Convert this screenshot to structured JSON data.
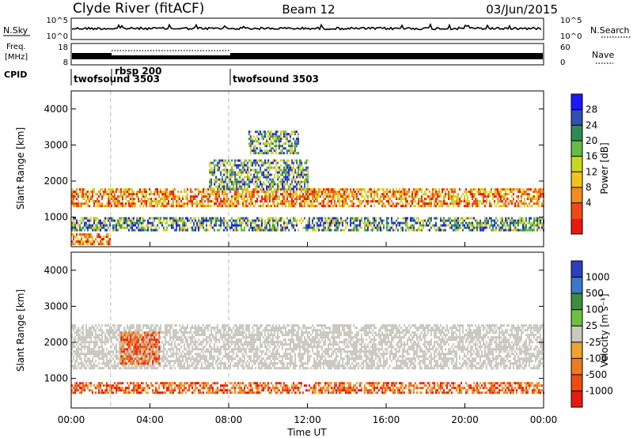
{
  "header": {
    "station": "Clyde River (fitACF)",
    "beam": "Beam 12",
    "date": "03/Jun/2015"
  },
  "noise_panel": {
    "left_label": "N.Sky",
    "right_label": "N.Search",
    "tick_top": "10^5",
    "tick_bottom": "10^0"
  },
  "freq_panel": {
    "left_label_line1": "Freq.",
    "left_label_line2": "[MHz]",
    "left_tick_top": "18",
    "left_tick_bottom": "8",
    "right_label": "Nave",
    "right_tick_top": "60",
    "right_tick_bottom": "0"
  },
  "cpid_panel": {
    "label": "CPID",
    "segments": [
      {
        "name": "twofsound 3503",
        "start_hour": 0,
        "end_hour": 2
      },
      {
        "name": "rbsp 200",
        "start_hour": 2,
        "end_hour": 8
      },
      {
        "name": "twofsound 3503",
        "start_hour": 8,
        "end_hour": 24
      }
    ]
  },
  "chart_data": [
    {
      "type": "heatmap",
      "panel": "power",
      "ylabel": "Slant Range [km]",
      "ylim": [
        180,
        4500
      ],
      "xlim": [
        0,
        24
      ],
      "yticks": [
        "1000",
        "2000",
        "3000",
        "4000"
      ],
      "colorbar": {
        "label": "Power [dB]",
        "ticks": [
          "4",
          "8",
          "12",
          "16",
          "20",
          "24",
          "28"
        ],
        "colors": [
          "#1a1aff",
          "#3050b0",
          "#2e8b57",
          "#66bb44",
          "#c8d822",
          "#f0c419",
          "#f58a1e",
          "#f04a14",
          "#e81a10"
        ]
      },
      "bands": [
        {
          "range_km": [
            1300,
            1800
          ],
          "hours": [
            0,
            24
          ],
          "level": "high"
        },
        {
          "range_km": [
            650,
            1000
          ],
          "hours": [
            0,
            24
          ],
          "level": "mid"
        },
        {
          "range_km": [
            250,
            550
          ],
          "hours": [
            0,
            2
          ],
          "level": "high"
        },
        {
          "range_km": [
            1800,
            2600
          ],
          "hours": [
            7,
            12
          ],
          "level": "mid"
        },
        {
          "range_km": [
            2800,
            3400
          ],
          "hours": [
            9,
            11.5
          ],
          "level": "mid"
        }
      ]
    },
    {
      "type": "heatmap",
      "panel": "velocity",
      "xlabel": "Time UT",
      "ylabel": "Slant Range [km]",
      "ylim": [
        180,
        4500
      ],
      "xlim": [
        0,
        24
      ],
      "yticks": [
        "1000",
        "2000",
        "3000",
        "4000"
      ],
      "xticks": [
        "00:00",
        "04:00",
        "08:00",
        "12:00",
        "16:00",
        "20:00",
        "00:00"
      ],
      "colorbar": {
        "label": "Velocity [m s⁻¹]",
        "ticks": [
          "1000",
          "500",
          "100",
          "25",
          "-25",
          "-100",
          "-500",
          "-1000"
        ],
        "colors": [
          "#2b3fbf",
          "#3b78c8",
          "#3a8f3a",
          "#6fc040",
          "#c8c8c0",
          "#f0a22e",
          "#f07a1e",
          "#f04a14",
          "#e81a10"
        ]
      },
      "bands": [
        {
          "range_km": [
            1300,
            2500
          ],
          "hours": [
            0,
            24
          ],
          "level": "ground"
        },
        {
          "range_km": [
            600,
            900
          ],
          "hours": [
            0,
            24
          ],
          "level": "negative"
        },
        {
          "range_km": [
            1400,
            2300
          ],
          "hours": [
            2.5,
            4.5
          ],
          "level": "negative"
        }
      ]
    }
  ]
}
